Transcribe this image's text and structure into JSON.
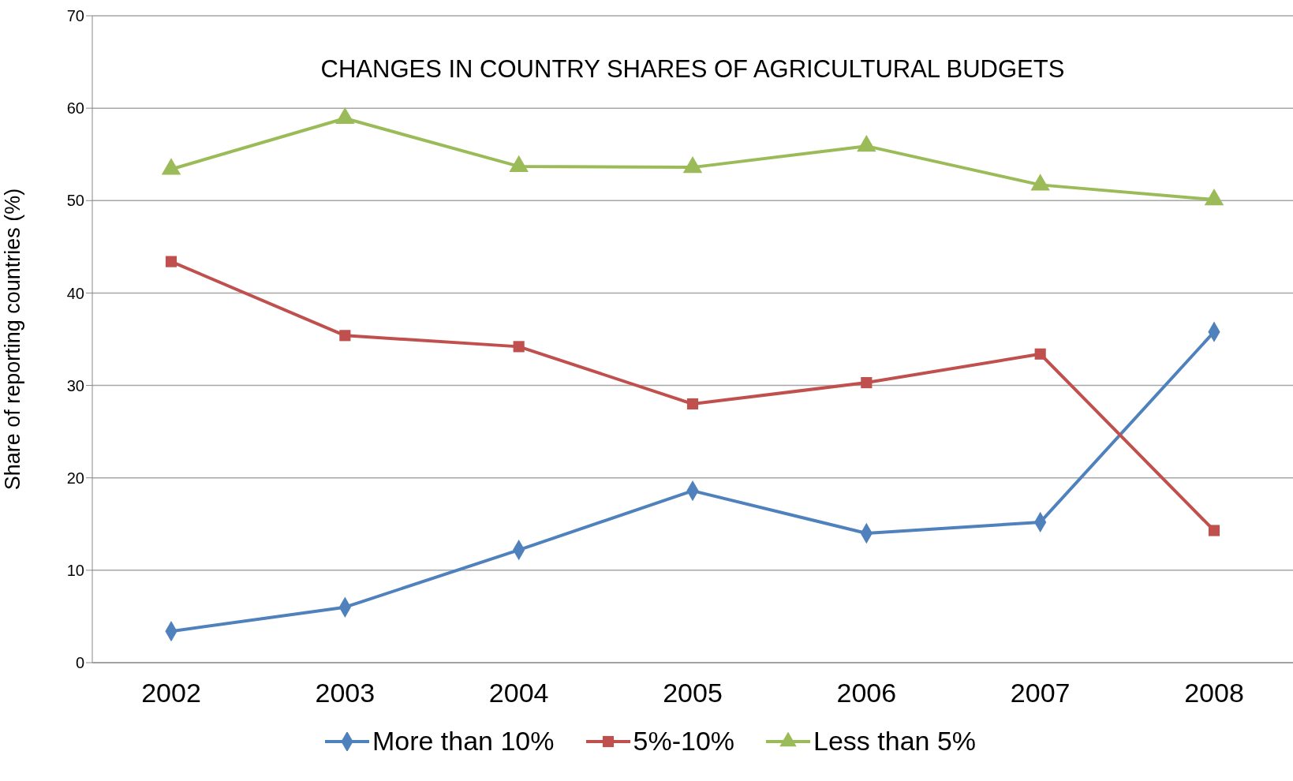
{
  "chart_data": {
    "type": "line",
    "title": "CHANGES IN COUNTRY SHARES OF AGRICULTURAL BUDGETS",
    "ylabel": "Share of reporting countries (%)",
    "categories": [
      "2002",
      "2003",
      "2004",
      "2005",
      "2006",
      "2007",
      "2008"
    ],
    "series": [
      {
        "name": "More than 10%",
        "color": "#4f81bd",
        "marker": "diamond",
        "values": [
          3.4,
          6.0,
          12.2,
          18.6,
          14.0,
          15.2,
          35.8
        ]
      },
      {
        "name": "5%-10%",
        "color": "#c0504d",
        "marker": "square",
        "values": [
          43.4,
          35.4,
          34.2,
          28.0,
          30.3,
          33.4,
          14.3
        ]
      },
      {
        "name": "Less than 5%",
        "color": "#9bbb59",
        "marker": "triangle",
        "values": [
          53.4,
          58.9,
          53.7,
          53.6,
          55.9,
          51.7,
          50.1
        ]
      }
    ],
    "ylim": [
      0,
      70
    ],
    "yticks": [
      0,
      10,
      20,
      30,
      40,
      50,
      60,
      70
    ],
    "grid": "y",
    "legend": "bottom",
    "line_style": "solid"
  }
}
